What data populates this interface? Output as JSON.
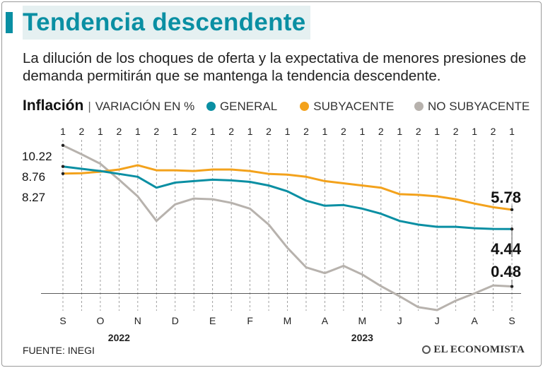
{
  "header": {
    "title": "Tendencia descendente",
    "subtitle": "La dilución de los choques de oferta y la expectativa de menores presiones de demanda permitirán que se mantenga la tendencia descendente."
  },
  "legend": {
    "title": "Inflación",
    "separator": "|",
    "unit": "VARIACIÓN EN %",
    "items": [
      {
        "label": "GENERAL",
        "color": "#0a8fa3"
      },
      {
        "label": "SUBYACENTE",
        "color": "#f3a21c"
      },
      {
        "label": "NO SUBYACENTE",
        "color": "#b7b2ad"
      }
    ]
  },
  "footer": {
    "source": "FUENTE: INEGI",
    "brand": "EL ECONOMISTA"
  },
  "chart_data": {
    "type": "line",
    "title": "Inflación",
    "ylabel": "VARIACIÓN EN %",
    "ylim": [
      -1.2,
      10.6
    ],
    "baseline": 0,
    "x_fortnights": [
      "1",
      "2",
      "1",
      "2",
      "1",
      "2",
      "1",
      "2",
      "1",
      "2",
      "1",
      "2",
      "1",
      "2",
      "1",
      "2",
      "1",
      "2",
      "1",
      "2",
      "1",
      "2",
      "1",
      "2",
      "1"
    ],
    "x_months": [
      "S",
      "O",
      "N",
      "D",
      "E",
      "F",
      "M",
      "A",
      "M",
      "J",
      "J",
      "A",
      "S"
    ],
    "x_years": [
      {
        "label": "2022",
        "month_index": 1.5
      },
      {
        "label": "2023",
        "month_index": 8
      }
    ],
    "y_labels": [
      {
        "label": "10.22",
        "value": 10.22
      },
      {
        "label": "8.76",
        "value": 8.76
      },
      {
        "label": "8.27",
        "value": 8.27
      }
    ],
    "end_labels": [
      {
        "series": "SUBYACENTE",
        "label": "5.78"
      },
      {
        "series": "GENERAL",
        "label": "4.44"
      },
      {
        "series": "NO SUBYACENTE",
        "label": "0.48"
      }
    ],
    "series": [
      {
        "name": "GENERAL",
        "color": "#0a8fa3",
        "values": [
          8.76,
          8.6,
          8.45,
          8.25,
          8.05,
          7.3,
          7.65,
          7.75,
          7.85,
          7.8,
          7.7,
          7.45,
          7.05,
          6.4,
          6.05,
          6.1,
          5.85,
          5.5,
          5.0,
          4.75,
          4.6,
          4.6,
          4.5,
          4.45,
          4.44
        ]
      },
      {
        "name": "SUBYACENTE",
        "color": "#f3a21c",
        "values": [
          8.27,
          8.3,
          8.4,
          8.55,
          8.85,
          8.5,
          8.5,
          8.45,
          8.55,
          8.55,
          8.45,
          8.25,
          8.2,
          8.05,
          7.75,
          7.6,
          7.45,
          7.3,
          6.85,
          6.8,
          6.7,
          6.5,
          6.2,
          5.95,
          5.78
        ]
      },
      {
        "name": "NO SUBYACENTE",
        "color": "#b7b2ad",
        "values": [
          10.22,
          9.6,
          8.95,
          7.85,
          6.7,
          5.0,
          6.15,
          6.55,
          6.5,
          6.25,
          5.85,
          4.75,
          3.15,
          1.8,
          1.4,
          1.9,
          1.3,
          0.5,
          -0.2,
          -0.95,
          -1.15,
          -0.5,
          0.0,
          0.55,
          0.48
        ]
      }
    ]
  }
}
